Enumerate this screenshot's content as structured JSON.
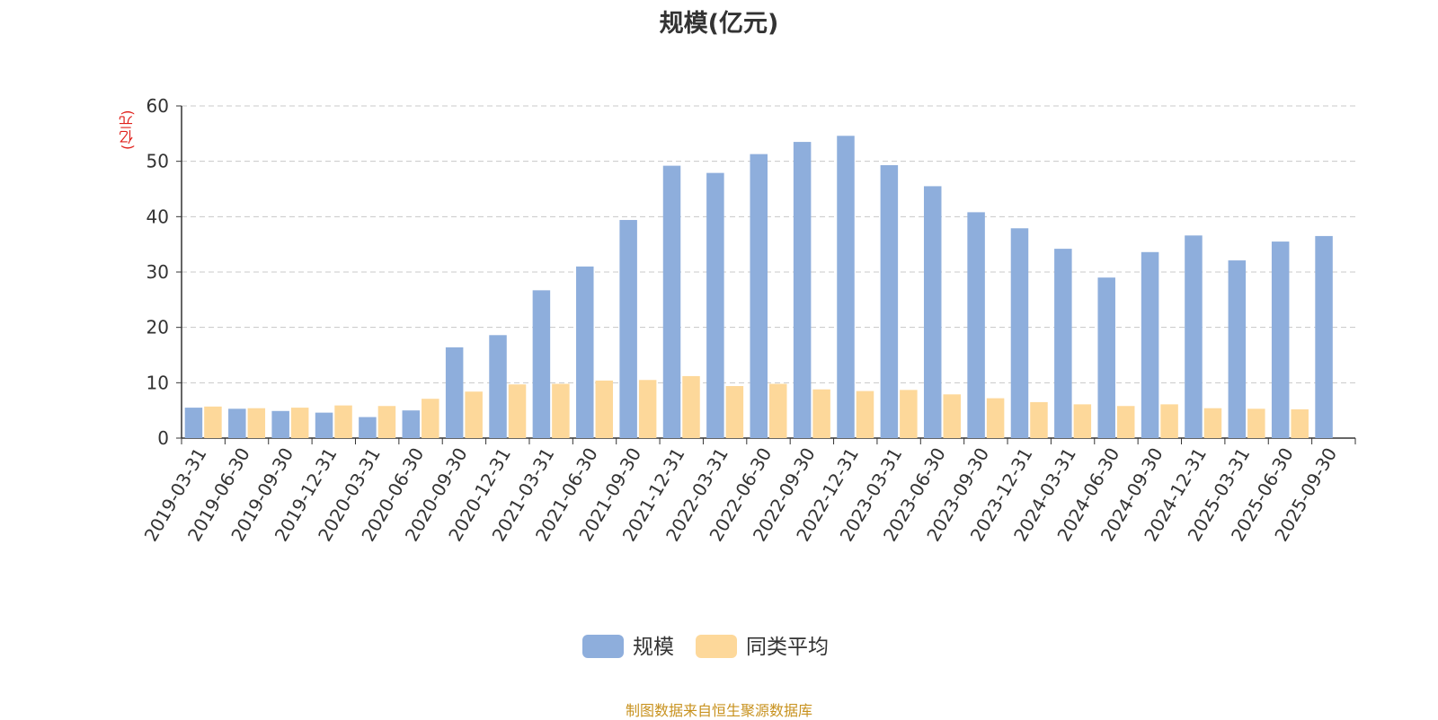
{
  "chart_data": {
    "type": "bar",
    "title": "规模(亿元)",
    "ylabel": "(亿元)",
    "xlabel": "",
    "ylim": [
      0,
      60
    ],
    "yticks": [
      0,
      10,
      20,
      30,
      40,
      50,
      60
    ],
    "grid": true,
    "legend_position": "bottom-center",
    "categories": [
      "2019-03-31",
      "2019-06-30",
      "2019-09-30",
      "2019-12-31",
      "2020-03-31",
      "2020-06-30",
      "2020-09-30",
      "2020-12-31",
      "2021-03-31",
      "2021-06-30",
      "2021-09-30",
      "2021-12-31",
      "2022-03-31",
      "2022-06-30",
      "2022-09-30",
      "2022-12-31",
      "2023-03-31",
      "2023-06-30",
      "2023-09-30",
      "2023-12-31",
      "2024-03-31",
      "2024-06-30",
      "2024-09-30",
      "2024-12-31",
      "2025-03-31",
      "2025-06-30",
      "2025-09-30"
    ],
    "series": [
      {
        "name": "规模",
        "color": "#8eaedc",
        "values": [
          5.5,
          5.3,
          4.9,
          4.6,
          3.8,
          5.0,
          16.4,
          18.6,
          26.7,
          31.0,
          39.4,
          49.2,
          47.9,
          51.3,
          53.5,
          54.6,
          49.3,
          45.5,
          40.8,
          37.9,
          34.2,
          29.0,
          33.6,
          36.6,
          32.1,
          35.5,
          36.5
        ]
      },
      {
        "name": "同类平均",
        "color": "#fdd89a",
        "values": [
          5.7,
          5.4,
          5.5,
          5.9,
          5.8,
          7.1,
          8.4,
          9.7,
          9.8,
          10.4,
          10.5,
          11.2,
          9.4,
          9.8,
          8.8,
          8.5,
          8.7,
          7.9,
          7.2,
          6.5,
          6.1,
          5.8,
          6.1,
          5.4,
          5.3,
          5.2,
          null
        ]
      }
    ],
    "source": "制图数据来自恒生聚源数据库"
  }
}
